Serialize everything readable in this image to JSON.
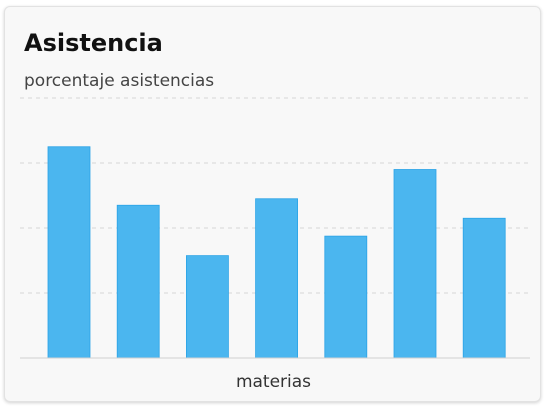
{
  "card": {
    "title": "Asistencia",
    "subtitle": "porcentaje asistencias"
  },
  "chart_data": {
    "type": "bar",
    "categories": [
      "",
      "",
      "",
      "",
      "",
      "",
      ""
    ],
    "values": [
      65,
      47,
      31.5,
      49,
      37.5,
      58,
      43
    ],
    "title": "Asistencia",
    "subtitle": "porcentaje asistencias",
    "xlabel": "materias",
    "ylabel": "",
    "ylim": [
      0,
      80
    ],
    "grid": true,
    "bar_color": "#4bb6ef",
    "bar_edge_color": "#2aa3e6",
    "grid_color": "#d6d6d6",
    "axis_color": "#d0d0d0"
  }
}
